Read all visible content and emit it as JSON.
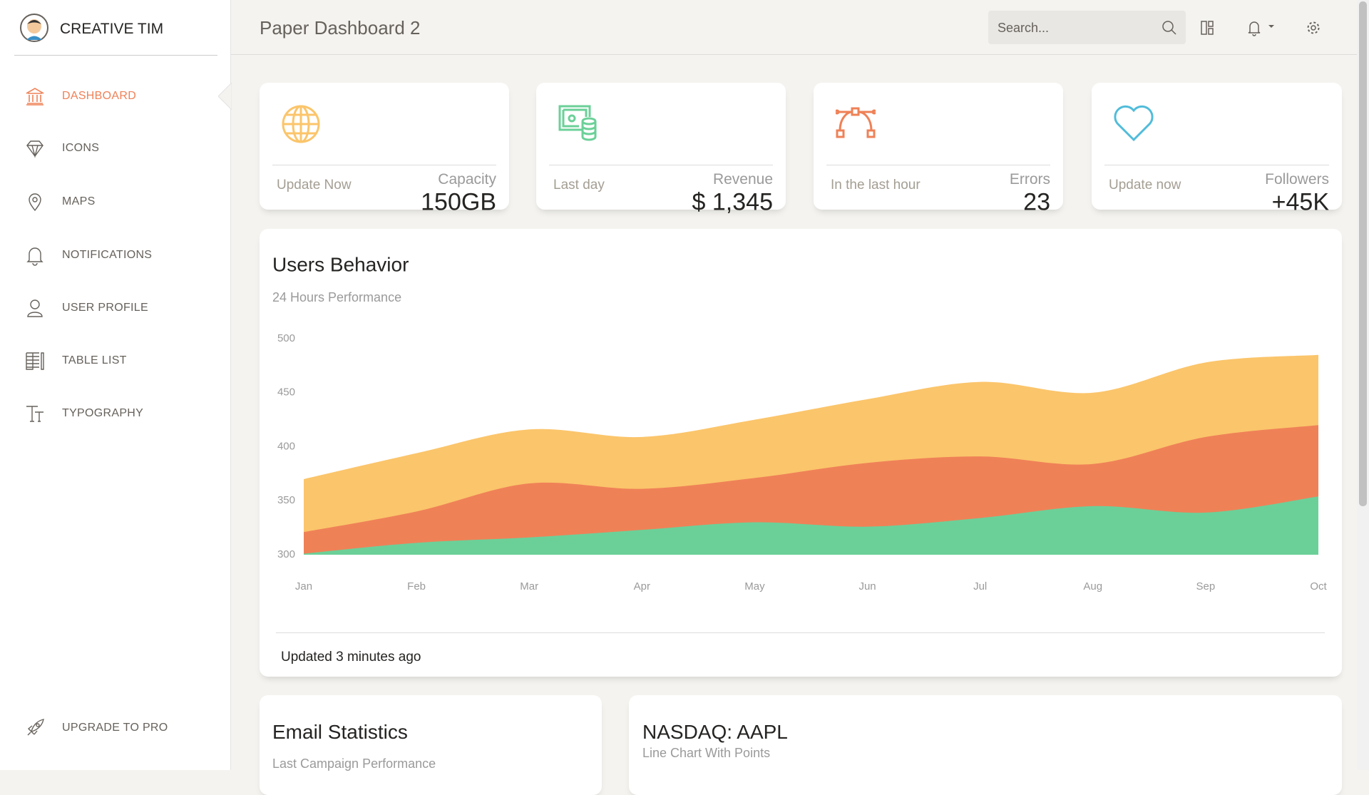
{
  "sidebar": {
    "brand": "CREATIVE TIM",
    "nav": [
      "DASHBOARD",
      "ICONS",
      "MAPS",
      "NOTIFICATIONS",
      "USER PROFILE",
      "TABLE LIST",
      "TYPOGRAPHY"
    ],
    "upgrade": "UPGRADE TO PRO"
  },
  "header": {
    "title": "Paper Dashboard 2",
    "search_placeholder": "Search..."
  },
  "stats": [
    {
      "label": "Capacity",
      "value": "150GB",
      "footer": "Update Now"
    },
    {
      "label": "Revenue",
      "value": "$ 1,345",
      "footer": "Last day"
    },
    {
      "label": "Errors",
      "value": "23",
      "footer": "In the last hour"
    },
    {
      "label": "Followers",
      "value": "+45K",
      "footer": "Update now"
    }
  ],
  "chart_card": {
    "footer": "Updated 3 minutes ago"
  },
  "chart_data": {
    "type": "area",
    "title": "Users Behavior",
    "subtitle": "24 Hours Performance",
    "categories": [
      "Jan",
      "Feb",
      "Mar",
      "Apr",
      "May",
      "Jun",
      "Jul",
      "Aug",
      "Sep",
      "Oct"
    ],
    "series": [
      {
        "color": "#fbc56b",
        "values": [
          370,
          394,
          416,
          409,
          425,
          444,
          460,
          450,
          478,
          485
        ]
      },
      {
        "color": "#ef8157",
        "values": [
          321,
          340,
          366,
          361,
          371,
          385,
          391,
          384,
          409,
          420
        ]
      },
      {
        "color": "#6bd098",
        "values": [
          301,
          311,
          316,
          323,
          330,
          326,
          334,
          345,
          339,
          354
        ]
      }
    ],
    "ylim": [
      300,
      500
    ],
    "yticks": [
      300,
      350,
      400,
      450,
      500
    ],
    "grid": false
  },
  "bottom_cards": [
    {
      "title": "Email Statistics",
      "subtitle": "Last Campaign Performance"
    },
    {
      "title": "NASDAQ: AAPL",
      "subtitle": "Line Chart With Points"
    }
  ]
}
